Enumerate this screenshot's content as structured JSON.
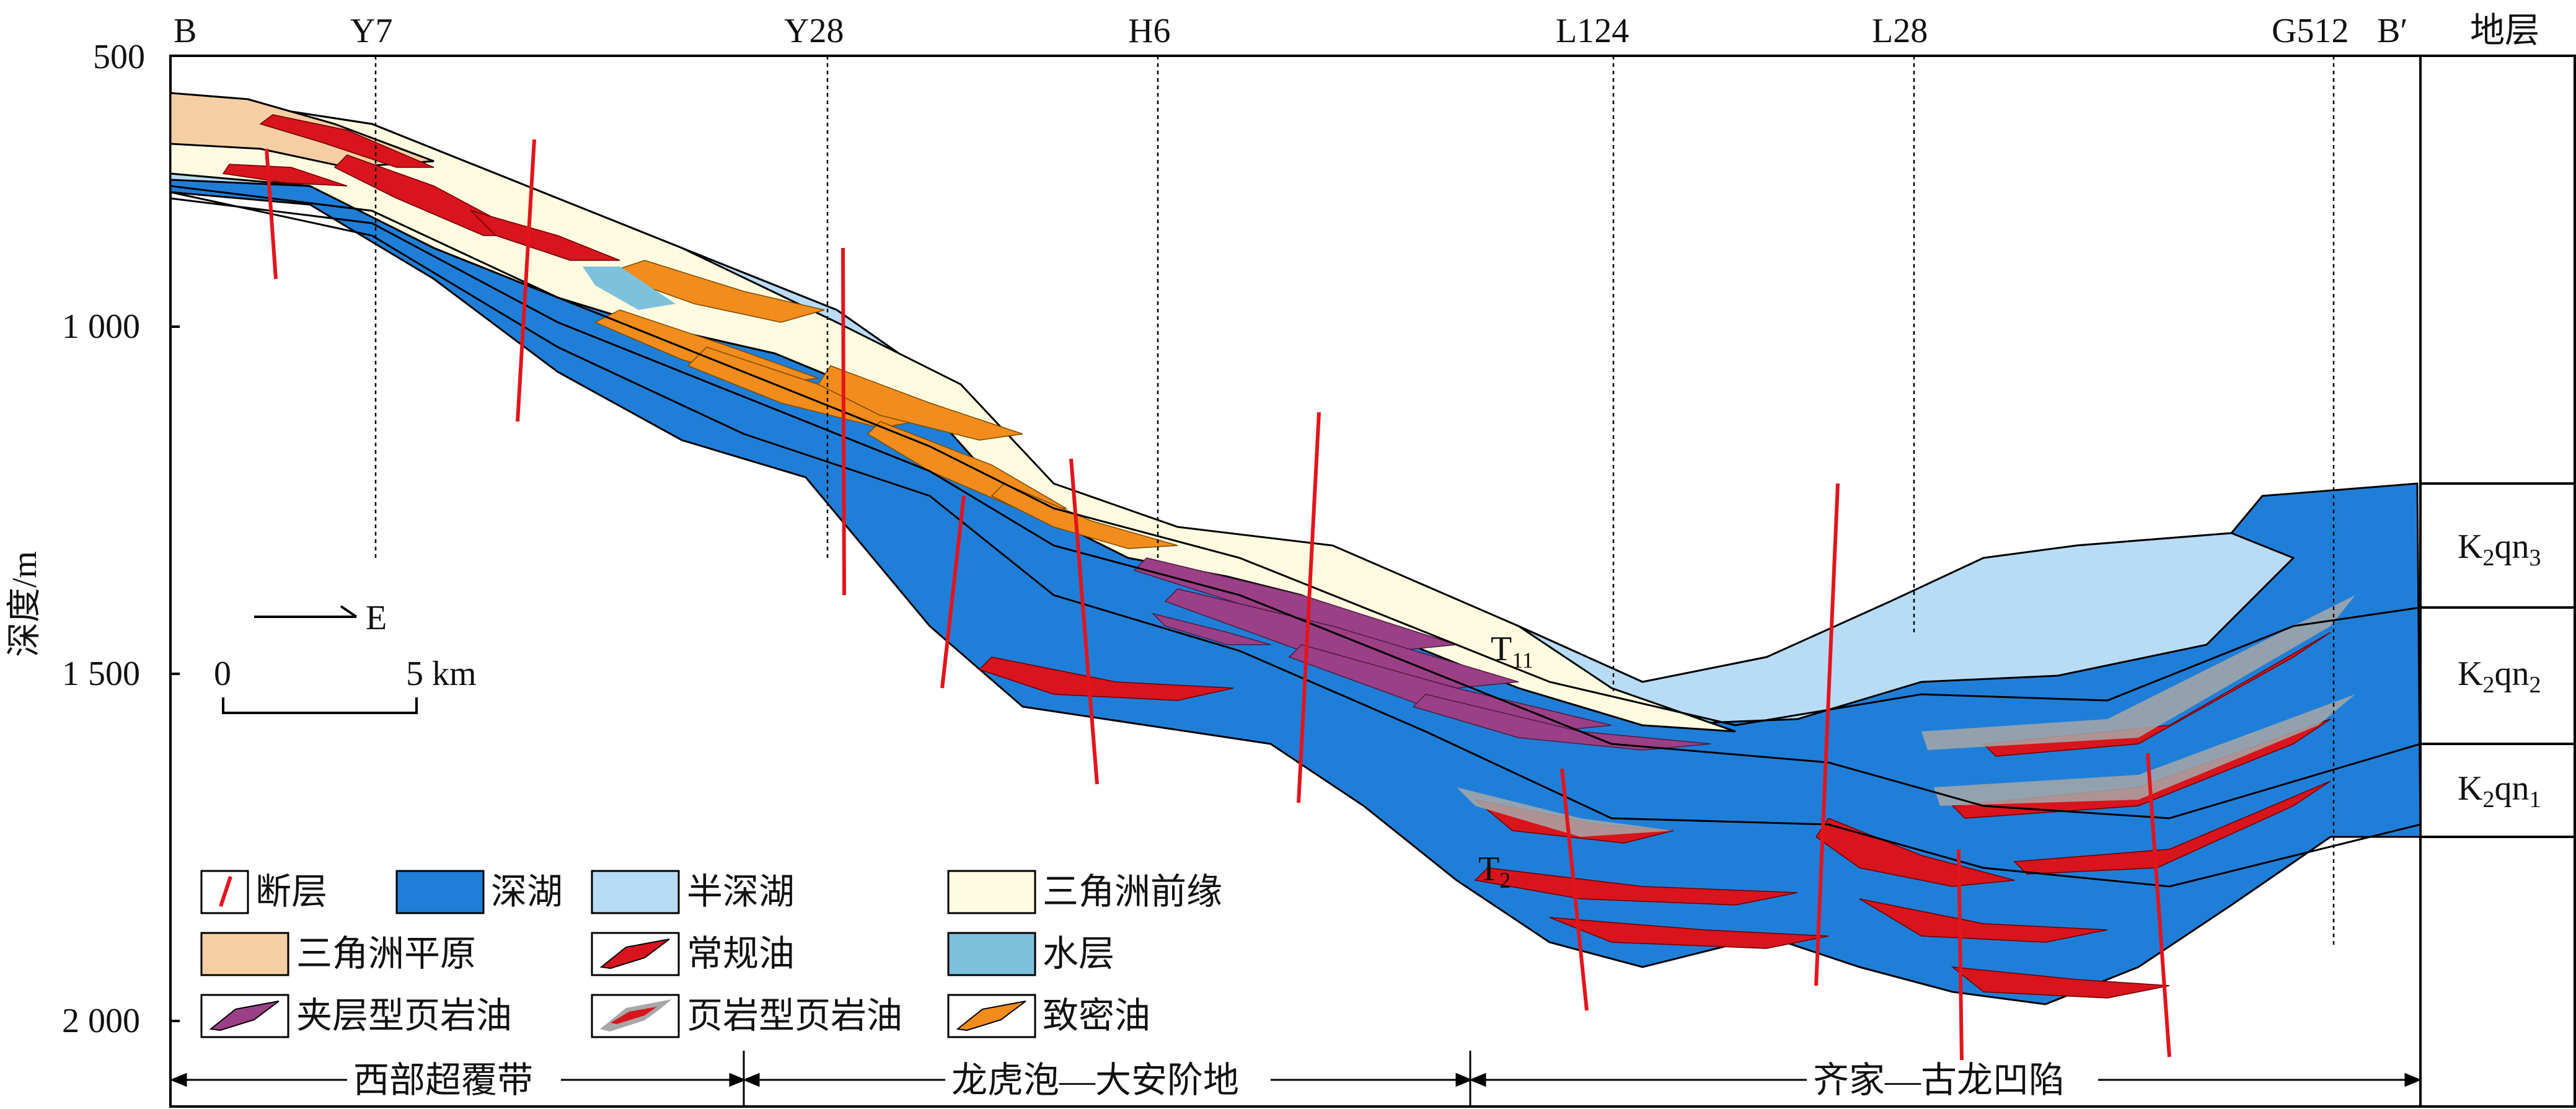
{
  "header": {
    "left_label": "B",
    "right_label": "B′",
    "strata_header": "地层"
  },
  "wells": [
    {
      "id": "well-y7",
      "name": "Y7"
    },
    {
      "id": "well-y28",
      "name": "Y28"
    },
    {
      "id": "well-h6",
      "name": "H6"
    },
    {
      "id": "well-l124",
      "name": "L124"
    },
    {
      "id": "well-l28",
      "name": "L28"
    },
    {
      "id": "well-g512",
      "name": "G512"
    }
  ],
  "depth_axis": {
    "title": "深度/m",
    "ticks": [
      "500",
      "1 000",
      "1 500",
      "2 000"
    ]
  },
  "strata": [
    {
      "id": "k2qn3",
      "base": "K",
      "sub1": "2",
      "mid": "qn",
      "sub2": "3"
    },
    {
      "id": "k2qn2",
      "base": "K",
      "sub1": "2",
      "mid": "qn",
      "sub2": "2"
    },
    {
      "id": "k2qn1",
      "base": "K",
      "sub1": "2",
      "mid": "qn",
      "sub2": "1"
    }
  ],
  "compass": {
    "label": "E"
  },
  "scale_bar": {
    "start": "0",
    "end": "5 km"
  },
  "horizon_labels": {
    "t11": {
      "main": "T",
      "sub": "11"
    },
    "t2": {
      "main": "T",
      "sub": "2"
    }
  },
  "legend": [
    {
      "id": "fault",
      "label": "断层"
    },
    {
      "id": "deep-lake",
      "label": "深湖",
      "color": "#1f7fd8"
    },
    {
      "id": "semi-deep-lake",
      "label": "半深湖",
      "color": "#b8dcf6"
    },
    {
      "id": "delta-front",
      "label": "三角洲前缘",
      "color": "#fffbe0"
    },
    {
      "id": "delta-plain",
      "label": "三角洲平原",
      "color": "#f5cfa3"
    },
    {
      "id": "conventional-oil",
      "label": "常规油",
      "color": "#d8141c"
    },
    {
      "id": "water-layer",
      "label": "水层",
      "color": "#7dc1dc"
    },
    {
      "id": "interbed-shale-oil",
      "label": "夹层型页岩油",
      "color": "#9b3f86"
    },
    {
      "id": "shale-type-shale-oil",
      "label": "页岩型页岩油",
      "color": "#a8a8a8"
    },
    {
      "id": "tight-oil",
      "label": "致密油",
      "color": "#f28c1c"
    }
  ],
  "regions": [
    {
      "id": "western-overlap-zone",
      "label": "西部超覆带"
    },
    {
      "id": "longhupao-daan-terrace",
      "label": "龙虎泡—大安阶地"
    },
    {
      "id": "qijia-gulong-sag",
      "label": "齐家—古龙凹陷"
    }
  ],
  "colors": {
    "deep_lake": "#1f7fd8",
    "semi_deep_lake": "#b8dcf6",
    "delta_front": "#fffbe0",
    "delta_plain": "#f5cfa3",
    "conventional_oil": "#d8141c",
    "water_layer": "#7dc1dc",
    "interbed_shale_oil": "#9b3f86",
    "shale_type_shale_oil": "#a8a8a8",
    "tight_oil": "#f28c1c",
    "fault": "#e3141c"
  }
}
